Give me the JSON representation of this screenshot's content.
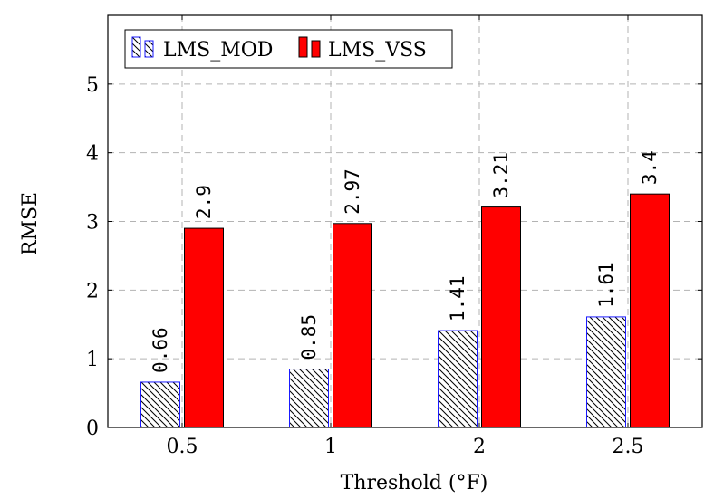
{
  "chart_data": {
    "type": "bar",
    "title": "",
    "xlabel": "Threshold (°F)",
    "ylabel": "RMSE",
    "categories": [
      "0.5",
      "1",
      "2",
      "2.5"
    ],
    "ylim": [
      0,
      6
    ],
    "yticks": [
      "0",
      "1",
      "2",
      "3",
      "4",
      "5"
    ],
    "grid": true,
    "legend_position": "top-left",
    "series": [
      {
        "name": "LMS_MOD",
        "values": [
          0.66,
          0.85,
          1.41,
          1.61
        ],
        "labels": [
          "0.66",
          "0.85",
          "1.41",
          "1.61"
        ],
        "fill": "hatched",
        "color": "#1a1aff"
      },
      {
        "name": "LMS_VSS",
        "values": [
          2.9,
          2.97,
          3.21,
          3.4
        ],
        "labels": [
          "2.9",
          "2.97",
          "3.21",
          "3.4"
        ],
        "fill": "solid",
        "color": "#ff0000"
      }
    ]
  }
}
